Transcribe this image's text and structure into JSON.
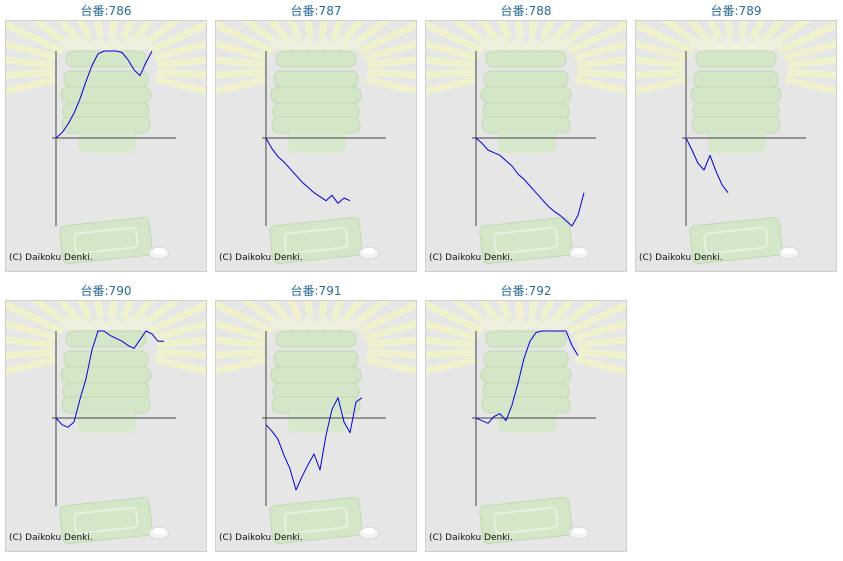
{
  "copyright": "(C) Daikoku Denki.",
  "colors": {
    "line": "#0000dd",
    "axis": "#444444",
    "title": "#2b6c9a",
    "panel_bg": "#e6e6e6"
  },
  "chart_data": [
    {
      "type": "line",
      "title": "台番:786",
      "x": [
        0,
        5,
        10,
        15,
        20,
        25,
        30,
        35,
        40,
        45,
        50,
        55,
        60,
        65,
        70,
        75,
        80
      ],
      "values": [
        0,
        180,
        480,
        850,
        1350,
        1950,
        2500,
        2900,
        3000,
        3000,
        3000,
        2950,
        2700,
        2350,
        2150,
        2600,
        3000
      ]
    },
    {
      "type": "line",
      "title": "台番:787",
      "x": [
        0,
        5,
        10,
        15,
        20,
        25,
        30,
        35,
        40,
        45,
        50,
        55,
        60,
        65,
        70
      ],
      "values": [
        0,
        -400,
        -700,
        -900,
        -1150,
        -1400,
        -1650,
        -1850,
        -2050,
        -2200,
        -2350,
        -2150,
        -2450,
        -2250,
        -2350
      ]
    },
    {
      "type": "line",
      "title": "台番:788",
      "x": [
        0,
        5,
        10,
        15,
        20,
        25,
        30,
        35,
        40,
        45,
        50,
        55,
        60,
        65,
        70,
        75,
        80,
        85,
        90
      ],
      "values": [
        0,
        -200,
        -450,
        -550,
        -650,
        -850,
        -1050,
        -1350,
        -1550,
        -1800,
        -2050,
        -2300,
        -2550,
        -2750,
        -2900,
        -3100,
        -3300,
        -2900,
        -2050
      ]
    },
    {
      "type": "line",
      "title": "台番:789",
      "x": [
        0,
        5,
        10,
        15,
        20,
        25,
        30,
        35
      ],
      "values": [
        0,
        -450,
        -950,
        -1200,
        -650,
        -1250,
        -1750,
        -2050
      ]
    },
    {
      "type": "line",
      "title": "台番:790",
      "x": [
        0,
        5,
        10,
        15,
        20,
        25,
        30,
        35,
        40,
        45,
        50,
        55,
        60,
        65,
        70,
        75,
        80,
        85,
        90
      ],
      "values": [
        0,
        -250,
        -350,
        -150,
        650,
        1350,
        2350,
        3000,
        3000,
        2850,
        2750,
        2650,
        2500,
        2400,
        2700,
        3000,
        2900,
        2650,
        2650
      ]
    },
    {
      "type": "line",
      "title": "台番:791",
      "x": [
        0,
        5,
        10,
        15,
        20,
        25,
        30,
        35,
        40,
        45,
        50,
        55,
        60,
        65,
        70,
        75,
        80
      ],
      "values": [
        -250,
        -500,
        -800,
        -1400,
        -1900,
        -2700,
        -2200,
        -1750,
        -1350,
        -1950,
        -650,
        300,
        700,
        -150,
        -550,
        550,
        700
      ]
    },
    {
      "type": "line",
      "title": "台番:792",
      "x": [
        0,
        5,
        10,
        15,
        20,
        25,
        30,
        35,
        40,
        45,
        50,
        55,
        60,
        65,
        70,
        75,
        80,
        85
      ],
      "values": [
        0,
        -100,
        -200,
        50,
        150,
        -100,
        450,
        1200,
        2050,
        2650,
        2950,
        3000,
        3000,
        3000,
        3000,
        3000,
        2500,
        2150
      ]
    }
  ]
}
